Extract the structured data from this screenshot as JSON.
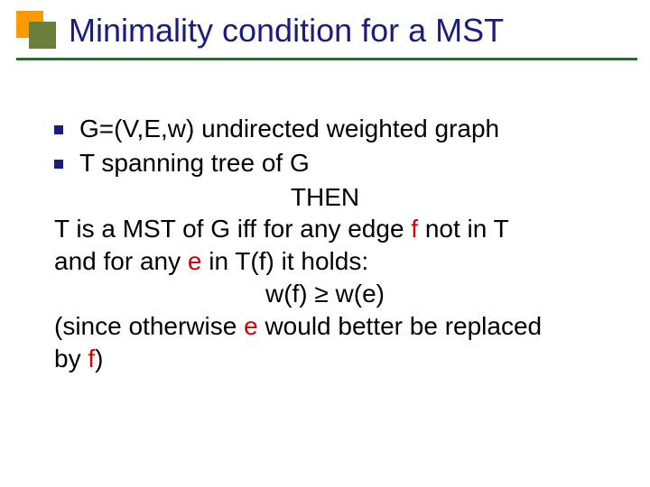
{
  "colors": {
    "title_text": "#1c1c80",
    "underline": "#336633",
    "accent_back": "#fe9a00",
    "accent_front": "#6a7f39",
    "bullet": "#1c1c80",
    "body_text": "#000000",
    "highlight": "#cc0000"
  },
  "title": "Minimality condition for a MST",
  "bullets": [
    "G=(V,E,w) undirected weighted graph",
    "T spanning tree of G"
  ],
  "then_line": "THEN",
  "line1_a": "T is a MST of G iff for any edge ",
  "line1_f": "f",
  "line1_b": " not in T",
  "line2_a": "and for any ",
  "line2_e": "e",
  "line2_b": " in T(f) it holds:",
  "inequality": "w(f) ≥ w(e)",
  "line3_a": "(since otherwise ",
  "line3_e": "e",
  "line3_b": " would better be replaced",
  "line4_a": "by ",
  "line4_f": "f",
  "line4_b": ")"
}
